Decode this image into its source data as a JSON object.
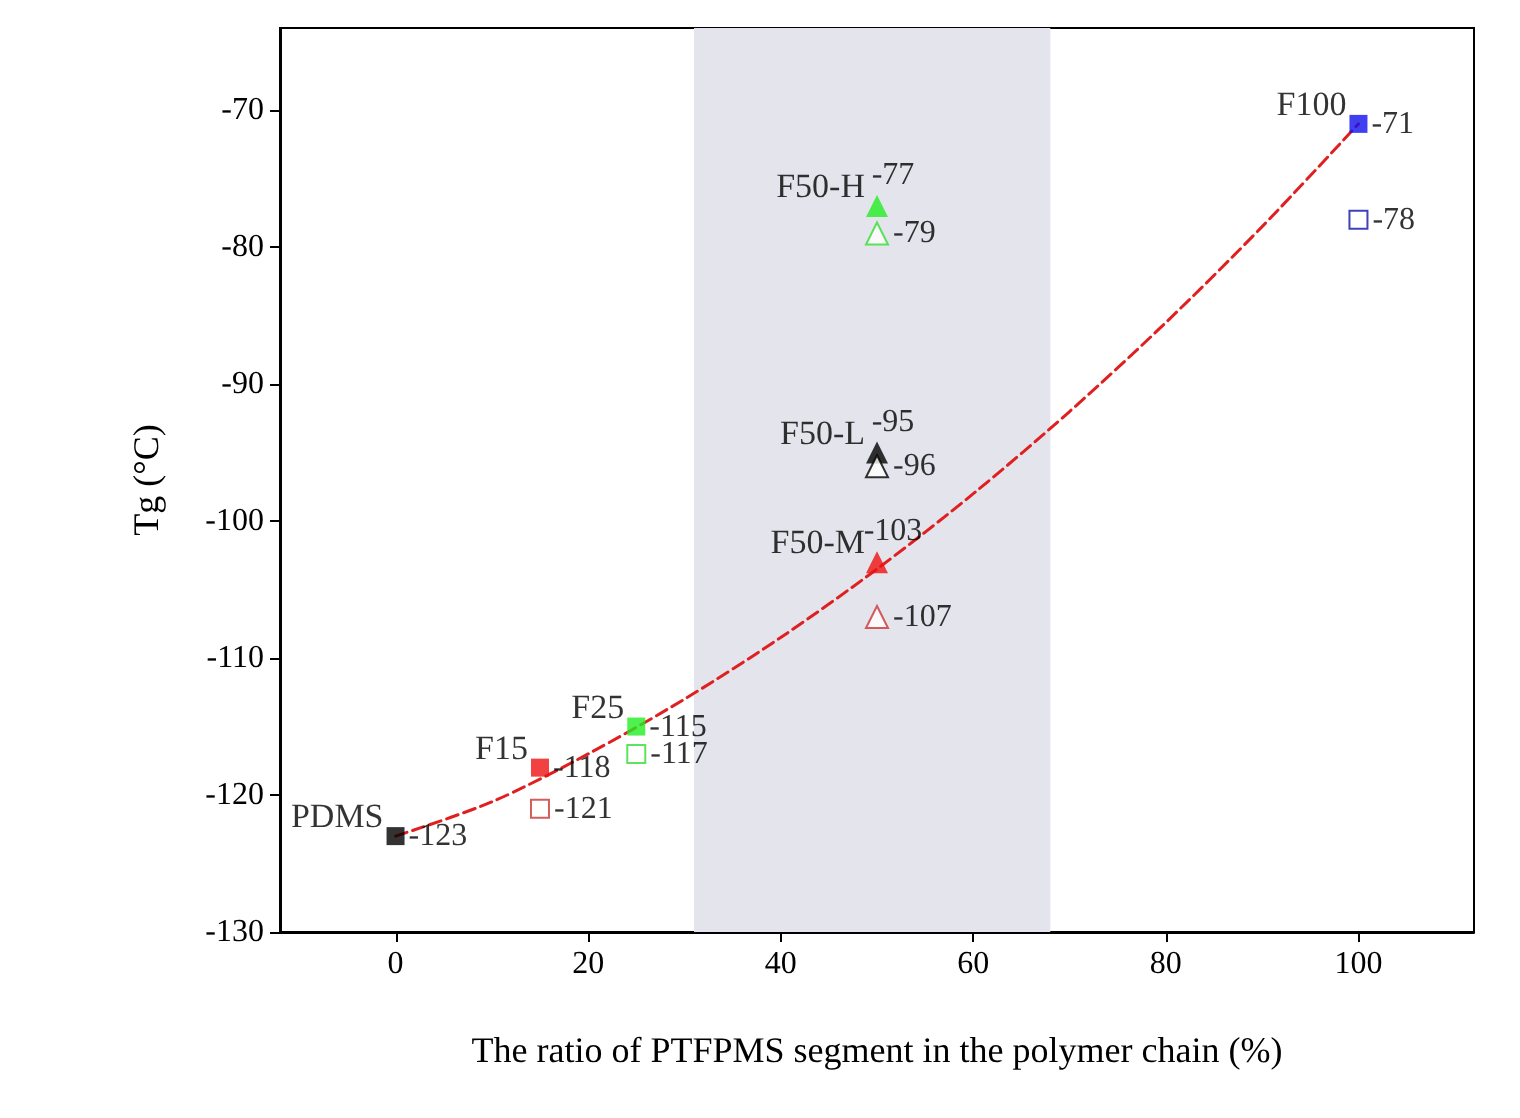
{
  "chart_data": {
    "type": "scatter",
    "xlabel": "The ratio of PTFPMS segment in the polymer chain (%)",
    "ylabel": "Tg (°C)",
    "xlim": [
      -12,
      112
    ],
    "xticks": [
      0,
      20,
      40,
      60,
      80,
      100
    ],
    "ylim": [
      -130,
      -64
    ],
    "yticks": [
      -130,
      -120,
      -110,
      -100,
      -90,
      -80,
      -70
    ],
    "grid": false,
    "bands": [
      {
        "axis": "x",
        "from": 31,
        "to": 68,
        "color": "#e3e4ec"
      }
    ],
    "series": [
      {
        "type": "scatter",
        "marker": "square",
        "x": [
          0,
          15,
          25,
          100
        ],
        "values": [
          -123,
          -118,
          -115,
          -71
        ],
        "colors": [
          "#000000",
          "#ee1111",
          "#22ee22",
          "#1010ee"
        ],
        "value_labels": [
          "-123",
          "-118",
          "-115",
          "-71"
        ]
      },
      {
        "type": "scatter",
        "marker": "square",
        "x": [
          15,
          25,
          100
        ],
        "values": [
          -121,
          -117,
          -78
        ],
        "colors": [
          "#cc3333",
          "#33dd33",
          "#1010aa"
        ],
        "value_labels": [
          "-121",
          "-117",
          "-78"
        ]
      },
      {
        "type": "scatter",
        "marker": "triangle",
        "x": [
          50,
          50,
          50
        ],
        "values": [
          -77,
          -95,
          -103
        ],
        "colors": [
          "#22ee22",
          "#000000",
          "#ee1111"
        ],
        "value_labels": [
          "-77",
          "-95",
          "-103"
        ]
      },
      {
        "type": "scatter",
        "marker": "triangle",
        "x": [
          50,
          50,
          50
        ],
        "values": [
          -79,
          -96,
          -107
        ],
        "colors": [
          "#33dd33",
          "#000000",
          "#cc3333"
        ],
        "value_labels": [
          "-79",
          "-96",
          "-107"
        ]
      },
      {
        "type": "line",
        "marker": "none",
        "line_style": "dashed",
        "color": "#e02020",
        "x": [
          0,
          10,
          20,
          30,
          40,
          50,
          60,
          70,
          80,
          90,
          100
        ],
        "values": [
          -123,
          -120.5,
          -117,
          -113,
          -108.5,
          -103.5,
          -98,
          -92,
          -85.5,
          -78.5,
          -71
        ]
      }
    ],
    "annotations": [
      {
        "text": "PDMS",
        "x": 0,
        "y": -123
      },
      {
        "text": "F15",
        "x": 15,
        "y": -118
      },
      {
        "text": "F25",
        "x": 25,
        "y": -115
      },
      {
        "text": "F50-H",
        "x": 50,
        "y": -77
      },
      {
        "text": "F50-L",
        "x": 50,
        "y": -95
      },
      {
        "text": "F50-M",
        "x": 50,
        "y": -103
      },
      {
        "text": "F100",
        "x": 100,
        "y": -71
      }
    ]
  }
}
